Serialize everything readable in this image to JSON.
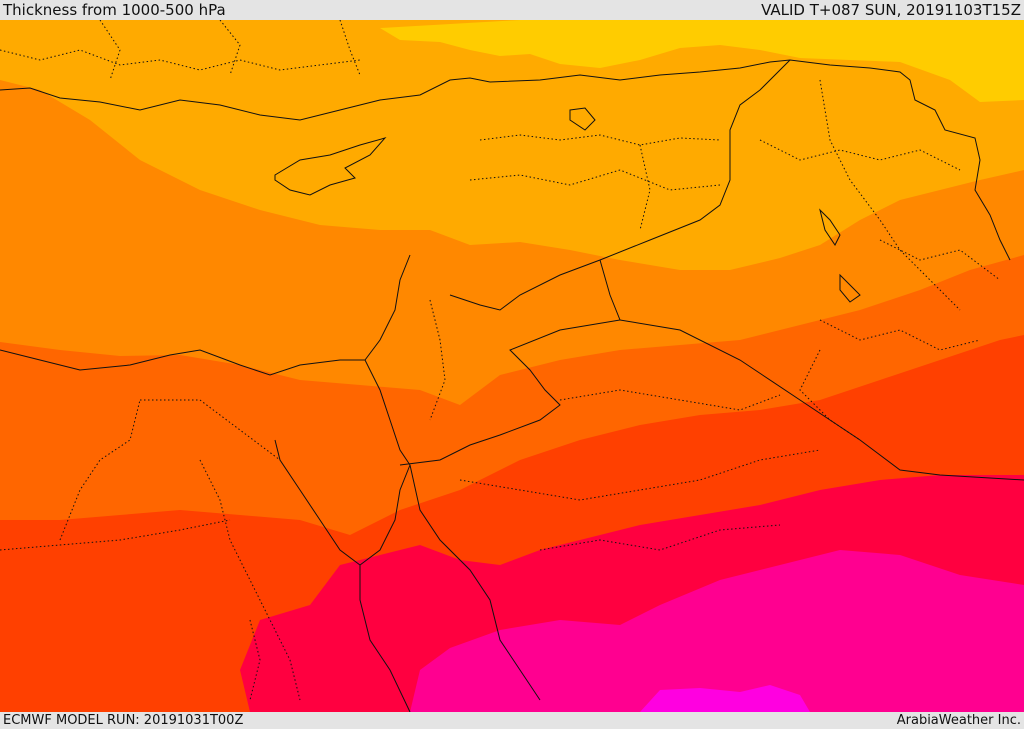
{
  "header": {
    "title": "Thickness from 1000-500 hPa",
    "valid": "VALID T+087 SUN, 20191103T15Z"
  },
  "footer": {
    "model_run": "ECMWF MODEL RUN: 20191031T00Z",
    "credit": "ArabiaWeather Inc."
  },
  "colors": {
    "band_yellow": "#ffcc00",
    "band_light_orange": "#ffaa00",
    "band_orange": "#ff8800",
    "band_dark_orange": "#ff6600",
    "band_red_orange": "#ff4000",
    "band_red": "#ff0040",
    "band_magenta": "#ff0090",
    "band_violet": "#ff00e0",
    "border_line": "#111111"
  }
}
